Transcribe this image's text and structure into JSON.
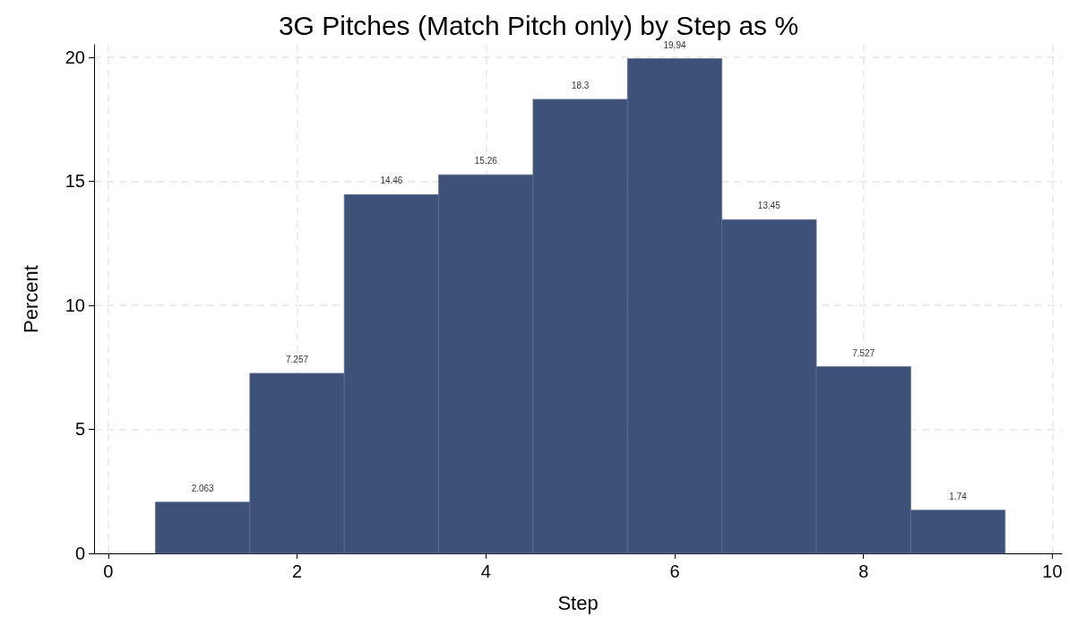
{
  "chart_data": {
    "type": "histogram",
    "title": "3G Pitches (Match Pitch only) by Step as %",
    "xlabel": "Step",
    "ylabel": "Percent",
    "bins": [
      0.5,
      1.5,
      2.5,
      3.5,
      4.5,
      5.5,
      6.5,
      7.5,
      8.5,
      9.5
    ],
    "values": [
      2.063,
      7.257,
      14.46,
      15.26,
      18.3,
      19.94,
      13.45,
      7.527,
      1.74
    ],
    "color": "#3e5179",
    "xlim": [
      -0.15,
      10.1
    ],
    "xticks": [
      0,
      2,
      4,
      6,
      8,
      10
    ],
    "ylim": [
      0,
      20.5
    ],
    "yticks": [
      0,
      5,
      10,
      15,
      20
    ],
    "grid": true,
    "data_labels": true
  }
}
